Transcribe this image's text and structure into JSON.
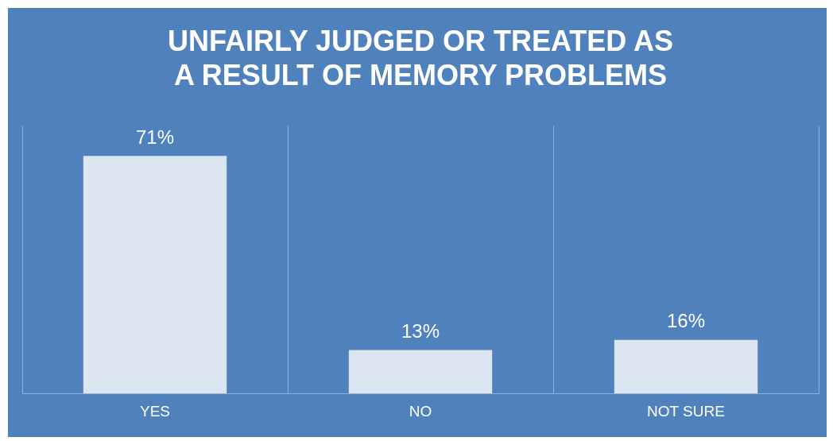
{
  "chart_data": {
    "type": "bar",
    "title": "UNFAIRLY JUDGED OR TREATED AS\nA RESULT OF MEMORY PROBLEMS",
    "categories": [
      "YES",
      "NO",
      "NOT SURE"
    ],
    "values": [
      71,
      13,
      16
    ],
    "value_labels": [
      "71%",
      "13%",
      "16%"
    ],
    "color": "#dce5f2",
    "ylim": [
      0,
      80
    ],
    "tick_labels": "x",
    "grid": "x"
  }
}
